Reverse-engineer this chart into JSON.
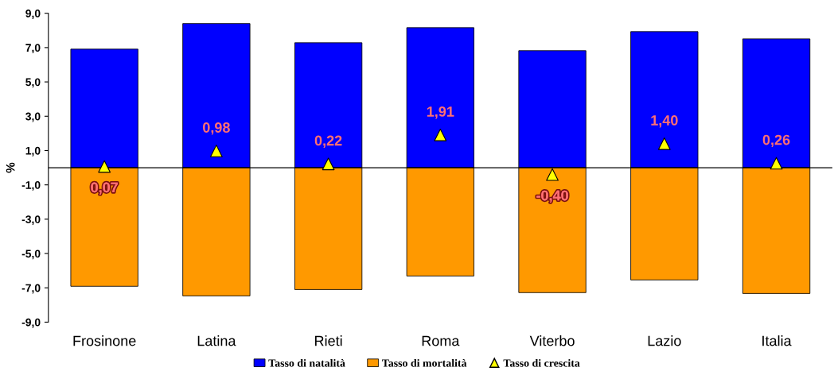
{
  "chart_data": {
    "type": "bar",
    "stacked": true,
    "ylabel": "%",
    "categories": [
      "Frosinone",
      "Latina",
      "Rieti",
      "Roma",
      "Viterbo",
      "Lazio",
      "Italia"
    ],
    "series": [
      {
        "name": "Tasso di natalità",
        "color": "#0000ff",
        "values": [
          6.91,
          8.4,
          7.28,
          8.16,
          6.82,
          7.93,
          7.51
        ]
      },
      {
        "name": "Tasso di mortalità",
        "color": "#ff9900",
        "values": [
          -6.91,
          -7.47,
          -7.1,
          -6.31,
          -7.28,
          -6.54,
          -7.33
        ]
      },
      {
        "name": "Tasso di crescita",
        "type": "scatter",
        "marker": "triangle",
        "color": "#ffff00",
        "values": [
          0.07,
          0.98,
          0.22,
          1.91,
          -0.4,
          1.4,
          0.26
        ],
        "value_labels": [
          "0,07",
          "0,98",
          "0,22",
          "1,91",
          "-0,40",
          "1,40",
          "0,26"
        ]
      }
    ],
    "ylim": [
      -9,
      9
    ],
    "yticks": [
      {
        "value": -9,
        "label": "-9,0"
      },
      {
        "value": -7,
        "label": "-7,0"
      },
      {
        "value": -5,
        "label": "-5,0"
      },
      {
        "value": -3,
        "label": "-3,0"
      },
      {
        "value": -1,
        "label": "-1,0"
      },
      {
        "value": 1,
        "label": "1,0"
      },
      {
        "value": 3,
        "label": "3,0"
      },
      {
        "value": 5,
        "label": "5,0"
      },
      {
        "value": 7,
        "label": "7,0"
      },
      {
        "value": 9,
        "label": "9,0"
      }
    ],
    "grid": false,
    "legend": "bottom"
  }
}
